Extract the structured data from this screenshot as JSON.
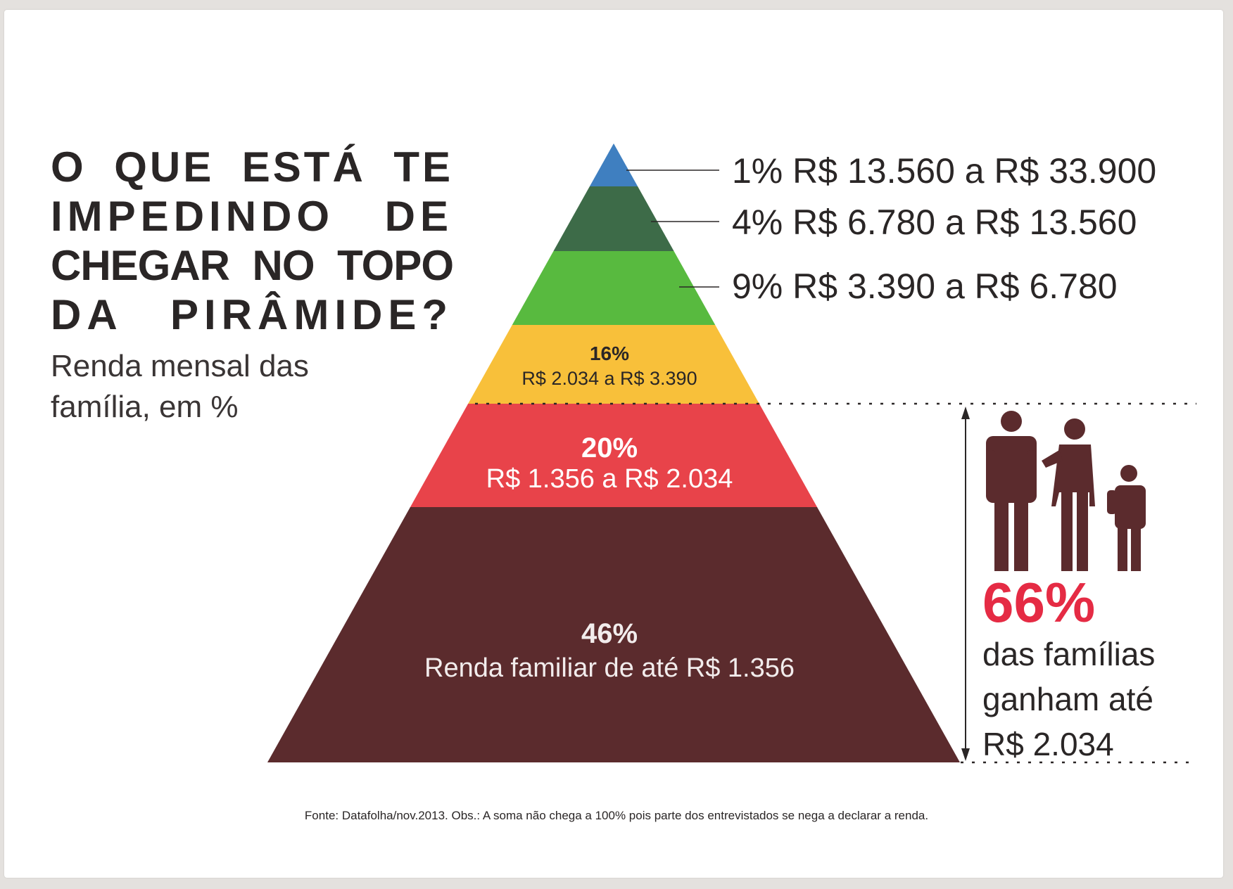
{
  "header": {
    "title_lines": [
      "O QUE ESTÁ TE",
      "IMPEDINDO DE",
      "CHEGAR NO TOPO",
      "DA PIRÂMIDE?"
    ],
    "subtitle": "Renda mensal das família, em %"
  },
  "chart_data": {
    "type": "pyramid",
    "title": "O QUE ESTÁ TE IMPEDINDO DE CHEGAR NO TOPO DA PIRÂMIDE?",
    "subtitle": "Renda mensal das família, em %",
    "unit": "%",
    "tiers": [
      {
        "percent": 1,
        "percent_label": "1%",
        "range": "R$ 13.560 a R$ 33.900",
        "color": "#3f7fc0",
        "label_position": "outside"
      },
      {
        "percent": 4,
        "percent_label": "4%",
        "range": "R$ 6.780 a R$ 13.560",
        "color": "#3d6b48",
        "label_position": "outside"
      },
      {
        "percent": 9,
        "percent_label": "9%",
        "range": "R$ 3.390 a R$ 6.780",
        "color": "#58ba3f",
        "label_position": "outside"
      },
      {
        "percent": 16,
        "percent_label": "16%",
        "range": "R$ 2.034 a R$ 3.390",
        "color": "#f8c03a",
        "label_position": "inside"
      },
      {
        "percent": 20,
        "percent_label": "20%",
        "range": "R$ 1.356 a R$ 2.034",
        "color": "#e8434a",
        "label_position": "inside"
      },
      {
        "percent": 46,
        "percent_label": "46%",
        "range": "Renda familiar de até R$ 1.356",
        "color": "#5b2b2d",
        "label_position": "inside"
      }
    ],
    "highlight": {
      "percent": 66,
      "percent_label": "66%",
      "text_lines": [
        "das famílias",
        "ganham até",
        "R$ 2.034"
      ],
      "color": "#e52b44",
      "icon": "family-silhouette-icon"
    }
  },
  "footer": {
    "source": "Fonte: Datafolha/nov.2013.   Obs.: A soma não chega a 100% pois parte dos entrevistados se nega a declarar a renda."
  }
}
